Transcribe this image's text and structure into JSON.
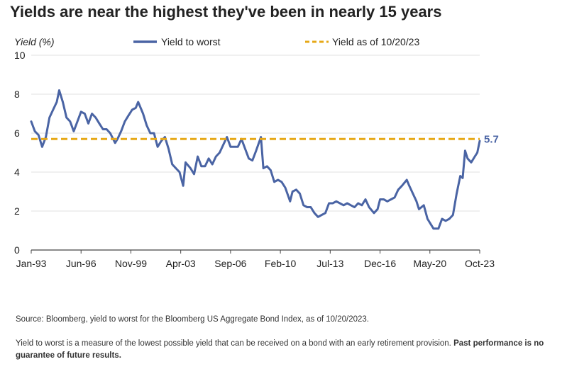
{
  "title": "Yields are near the highest they've been in nearly 15 years",
  "footnotes": {
    "source": "Source: Bloomberg, yield to worst for the Bloomberg US Aggregate Bond Index, as of 10/20/2023.",
    "definition": "Yield to worst is a measure of the lowest possible yield that can be received on a bond with an early retirement provision.",
    "disclaimer": "Past performance is no guarantee of future results."
  },
  "chart_data": {
    "type": "line",
    "ylabel": "Yield (%)",
    "ylim": [
      0,
      10
    ],
    "yticks": [
      0,
      2,
      4,
      6,
      8,
      10
    ],
    "xlim": [
      "1993-01",
      "2023-10"
    ],
    "xtick_labels": [
      "Jan-93",
      "Jun-96",
      "Nov-99",
      "Apr-03",
      "Sep-06",
      "Feb-10",
      "Jul-13",
      "Dec-16",
      "May-20",
      "Oct-23"
    ],
    "grid": "horizontal",
    "legend_position": "top",
    "reference_line": {
      "name": "Yield as of 10/20/23",
      "value": 5.7,
      "label": "5.7",
      "color": "#E6A817",
      "style": "dashed"
    },
    "series": [
      {
        "name": "Yield to worst",
        "color": "#4A64A4",
        "points": [
          [
            "1993-01",
            6.6
          ],
          [
            "1993-04",
            6.1
          ],
          [
            "1993-07",
            5.9
          ],
          [
            "1993-10",
            5.3
          ],
          [
            "1994-01",
            5.8
          ],
          [
            "1994-04",
            6.8
          ],
          [
            "1994-07",
            7.2
          ],
          [
            "1994-10",
            7.6
          ],
          [
            "1994-12",
            8.2
          ],
          [
            "1995-03",
            7.6
          ],
          [
            "1995-06",
            6.8
          ],
          [
            "1995-09",
            6.6
          ],
          [
            "1995-12",
            6.1
          ],
          [
            "1996-03",
            6.6
          ],
          [
            "1996-06",
            7.1
          ],
          [
            "1996-09",
            7.0
          ],
          [
            "1996-12",
            6.5
          ],
          [
            "1997-03",
            7.0
          ],
          [
            "1997-06",
            6.8
          ],
          [
            "1997-09",
            6.5
          ],
          [
            "1997-12",
            6.2
          ],
          [
            "1998-03",
            6.2
          ],
          [
            "1998-06",
            6.0
          ],
          [
            "1998-10",
            5.5
          ],
          [
            "1998-12",
            5.7
          ],
          [
            "1999-03",
            6.1
          ],
          [
            "1999-06",
            6.6
          ],
          [
            "1999-09",
            6.9
          ],
          [
            "1999-12",
            7.2
          ],
          [
            "2000-03",
            7.3
          ],
          [
            "2000-05",
            7.6
          ],
          [
            "2000-09",
            7.0
          ],
          [
            "2000-12",
            6.4
          ],
          [
            "2001-03",
            6.0
          ],
          [
            "2001-06",
            6.0
          ],
          [
            "2001-09",
            5.3
          ],
          [
            "2001-12",
            5.6
          ],
          [
            "2002-03",
            5.8
          ],
          [
            "2002-06",
            5.2
          ],
          [
            "2002-09",
            4.4
          ],
          [
            "2002-12",
            4.2
          ],
          [
            "2003-03",
            4.0
          ],
          [
            "2003-06",
            3.3
          ],
          [
            "2003-08",
            4.5
          ],
          [
            "2003-12",
            4.2
          ],
          [
            "2004-03",
            3.9
          ],
          [
            "2004-06",
            4.8
          ],
          [
            "2004-09",
            4.3
          ],
          [
            "2004-12",
            4.3
          ],
          [
            "2005-03",
            4.7
          ],
          [
            "2005-06",
            4.4
          ],
          [
            "2005-09",
            4.8
          ],
          [
            "2005-12",
            5.0
          ],
          [
            "2006-03",
            5.4
          ],
          [
            "2006-06",
            5.8
          ],
          [
            "2006-09",
            5.3
          ],
          [
            "2006-12",
            5.3
          ],
          [
            "2007-03",
            5.3
          ],
          [
            "2007-06",
            5.7
          ],
          [
            "2007-09",
            5.2
          ],
          [
            "2007-12",
            4.7
          ],
          [
            "2008-03",
            4.6
          ],
          [
            "2008-06",
            5.1
          ],
          [
            "2008-10",
            5.8
          ],
          [
            "2008-12",
            4.2
          ],
          [
            "2009-03",
            4.3
          ],
          [
            "2009-06",
            4.1
          ],
          [
            "2009-09",
            3.5
          ],
          [
            "2009-12",
            3.6
          ],
          [
            "2010-03",
            3.5
          ],
          [
            "2010-06",
            3.2
          ],
          [
            "2010-10",
            2.5
          ],
          [
            "2010-12",
            3.0
          ],
          [
            "2011-03",
            3.1
          ],
          [
            "2011-06",
            2.9
          ],
          [
            "2011-09",
            2.3
          ],
          [
            "2011-12",
            2.2
          ],
          [
            "2012-03",
            2.2
          ],
          [
            "2012-06",
            1.9
          ],
          [
            "2012-09",
            1.7
          ],
          [
            "2012-12",
            1.8
          ],
          [
            "2013-03",
            1.9
          ],
          [
            "2013-06",
            2.4
          ],
          [
            "2013-09",
            2.4
          ],
          [
            "2013-12",
            2.5
          ],
          [
            "2014-03",
            2.4
          ],
          [
            "2014-06",
            2.3
          ],
          [
            "2014-09",
            2.4
          ],
          [
            "2014-12",
            2.3
          ],
          [
            "2015-03",
            2.2
          ],
          [
            "2015-06",
            2.4
          ],
          [
            "2015-09",
            2.3
          ],
          [
            "2015-12",
            2.6
          ],
          [
            "2016-03",
            2.2
          ],
          [
            "2016-07",
            1.9
          ],
          [
            "2016-10",
            2.1
          ],
          [
            "2016-12",
            2.6
          ],
          [
            "2017-03",
            2.6
          ],
          [
            "2017-06",
            2.5
          ],
          [
            "2017-09",
            2.6
          ],
          [
            "2017-12",
            2.7
          ],
          [
            "2018-03",
            3.1
          ],
          [
            "2018-06",
            3.3
          ],
          [
            "2018-10",
            3.6
          ],
          [
            "2018-12",
            3.3
          ],
          [
            "2019-03",
            2.9
          ],
          [
            "2019-06",
            2.5
          ],
          [
            "2019-08",
            2.1
          ],
          [
            "2019-12",
            2.3
          ],
          [
            "2020-03",
            1.6
          ],
          [
            "2020-06",
            1.3
          ],
          [
            "2020-08",
            1.1
          ],
          [
            "2020-12",
            1.1
          ],
          [
            "2021-03",
            1.6
          ],
          [
            "2021-06",
            1.5
          ],
          [
            "2021-09",
            1.6
          ],
          [
            "2021-12",
            1.8
          ],
          [
            "2022-03",
            2.9
          ],
          [
            "2022-06",
            3.8
          ],
          [
            "2022-08",
            3.7
          ],
          [
            "2022-10",
            5.1
          ],
          [
            "2022-12",
            4.7
          ],
          [
            "2023-03",
            4.5
          ],
          [
            "2023-06",
            4.8
          ],
          [
            "2023-08",
            5.0
          ],
          [
            "2023-10",
            5.6
          ]
        ]
      }
    ]
  }
}
